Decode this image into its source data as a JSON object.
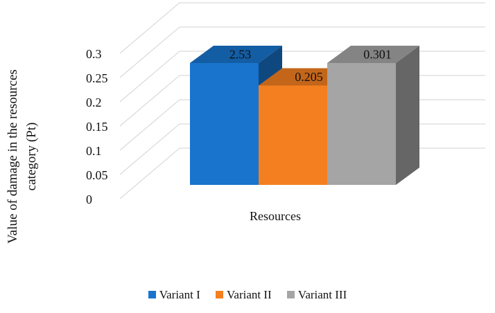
{
  "chart_data": {
    "type": "bar",
    "subtype": "3d-clustered-column",
    "ylabel_lines": [
      "Value of damage in the resources",
      "category (Pt)"
    ],
    "xlabel": "",
    "categories": [
      "Resources"
    ],
    "y_ticks": [
      "0",
      "0.05",
      "0.1",
      "0.15",
      "0.2",
      "0.25",
      "0.3"
    ],
    "ylim": [
      0,
      0.3
    ],
    "grid": true,
    "legend_position": "bottom",
    "series": [
      {
        "name": "Variant I",
        "value": 2.53,
        "data_label": "2.53",
        "color": "#1874CD"
      },
      {
        "name": "Variant II",
        "value": 0.205,
        "data_label": "0.205",
        "color": "#F47F20"
      },
      {
        "name": "Variant III",
        "value": 0.301,
        "data_label": "0.301",
        "color": "#A5A5A5"
      }
    ]
  }
}
